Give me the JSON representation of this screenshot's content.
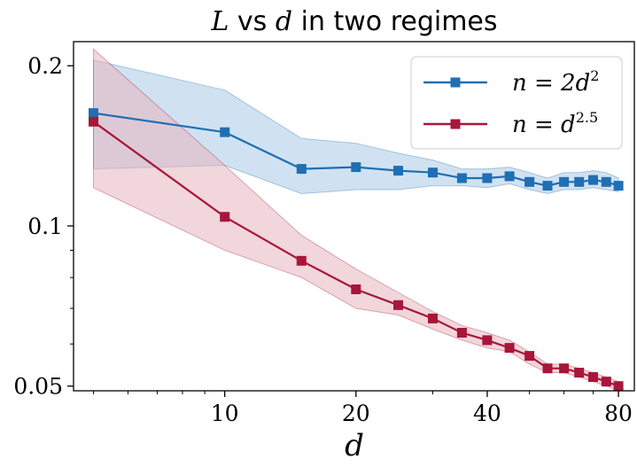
{
  "chart_data": {
    "type": "line",
    "title_parts": {
      "var1": "L",
      "mid": " vs ",
      "var2": "d",
      "rest": " in two regimes"
    },
    "xlabel": "d",
    "ylabel": "",
    "xscale": "log",
    "yscale": "log",
    "xlim": [
      4.5,
      87
    ],
    "ylim": [
      0.049,
      0.222
    ],
    "x_ticks": [
      {
        "value": 10,
        "label": "10"
      },
      {
        "value": 20,
        "label": "20"
      },
      {
        "value": 40,
        "label": "40"
      },
      {
        "value": 80,
        "label": "80"
      }
    ],
    "y_ticks": [
      {
        "value": 0.05,
        "label": "0.05"
      },
      {
        "value": 0.1,
        "label": "0.1"
      },
      {
        "value": 0.2,
        "label": "0.2"
      }
    ],
    "legend_position": "top-right",
    "grid": false,
    "series": [
      {
        "name_base": "n = 2d",
        "name_sup": "2",
        "color": "#1f6fb4",
        "fill": "#a9cbe6",
        "x": [
          5,
          10,
          15,
          20,
          25,
          30,
          35,
          40,
          45,
          50,
          55,
          60,
          65,
          70,
          75,
          80
        ],
        "y": [
          0.163,
          0.15,
          0.128,
          0.129,
          0.127,
          0.126,
          0.123,
          0.123,
          0.124,
          0.121,
          0.119,
          0.121,
          0.121,
          0.122,
          0.121,
          0.119
        ],
        "lower": [
          0.128,
          0.13,
          0.115,
          0.117,
          0.117,
          0.119,
          0.119,
          0.118,
          0.12,
          0.117,
          0.115,
          0.117,
          0.117,
          0.118,
          0.117,
          0.116
        ],
        "upper": [
          0.205,
          0.18,
          0.146,
          0.143,
          0.137,
          0.133,
          0.128,
          0.128,
          0.129,
          0.126,
          0.123,
          0.126,
          0.126,
          0.127,
          0.126,
          0.123
        ]
      },
      {
        "name_base": "n = d",
        "name_sup": "2.5",
        "color": "#a8163a",
        "fill": "#e6b4bd",
        "x": [
          5,
          10,
          15,
          20,
          25,
          30,
          35,
          40,
          45,
          50,
          55,
          60,
          65,
          70,
          75,
          80
        ],
        "y": [
          0.157,
          0.104,
          0.086,
          0.076,
          0.071,
          0.067,
          0.063,
          0.061,
          0.059,
          0.057,
          0.054,
          0.054,
          0.053,
          0.052,
          0.051,
          0.05
        ],
        "lower": [
          0.118,
          0.09,
          0.08,
          0.07,
          0.068,
          0.064,
          0.061,
          0.059,
          0.058,
          0.055,
          0.053,
          0.053,
          0.052,
          0.051,
          0.05,
          0.049
        ],
        "upper": [
          0.215,
          0.13,
          0.096,
          0.083,
          0.075,
          0.069,
          0.065,
          0.063,
          0.061,
          0.058,
          0.055,
          0.055,
          0.054,
          0.053,
          0.052,
          0.051
        ]
      }
    ]
  }
}
